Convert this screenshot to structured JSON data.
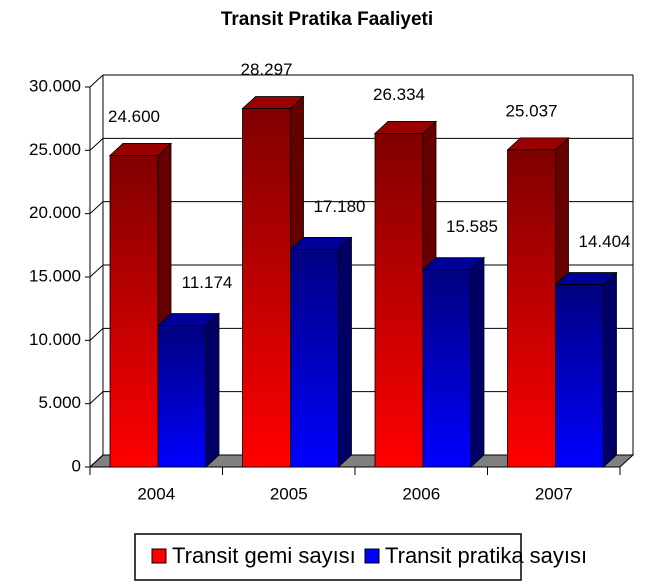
{
  "chart_data": {
    "type": "bar3d",
    "title": "Transit Pratika Faaliyeti",
    "categories": [
      "2004",
      "2005",
      "2006",
      "2007"
    ],
    "series": [
      {
        "name": "Transit gemi sayısı",
        "color": "#ff0000",
        "values": [
          24600,
          28297,
          26334,
          25037
        ],
        "value_labels": [
          "24.600",
          "28.297",
          "26.334",
          "25.037"
        ]
      },
      {
        "name": "Transit pratika sayısı",
        "color": "#0000ff",
        "values": [
          11174,
          17180,
          15585,
          14404
        ],
        "value_labels": [
          "11.174",
          "17.180",
          "15.585",
          "14.404"
        ]
      }
    ],
    "ylim": [
      0,
      30000
    ],
    "yticks": [
      0,
      {
        "value": 5000,
        "label": "5.000"
      },
      {
        "value": 10000,
        "label": "10.000"
      },
      {
        "value": 15000,
        "label": "15.000"
      },
      {
        "value": 20000,
        "label": "20.000"
      },
      {
        "value": 25000,
        "label": "25.000"
      },
      {
        "value": 30000,
        "label": "30.000"
      }
    ],
    "grid": true,
    "legend": "bottom"
  }
}
